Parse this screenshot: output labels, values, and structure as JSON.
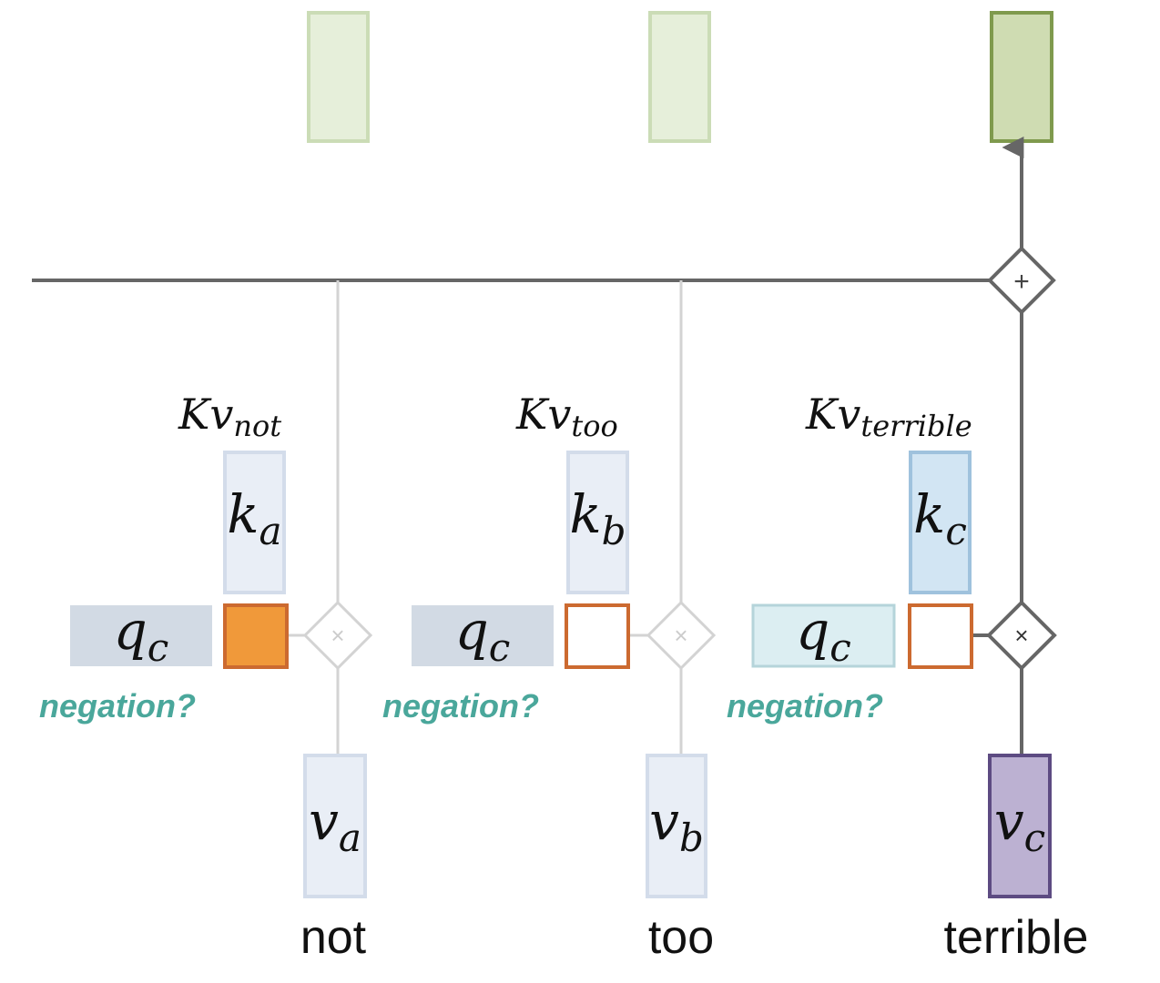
{
  "colors": {
    "output_light_fill": "#e6efda",
    "output_light_stroke": "#cbdcb6",
    "output_active_fill": "#cfdcb2",
    "output_active_stroke": "#7f9a4d",
    "key_light_fill": "#e9eef6",
    "key_light_stroke": "#d3dcea",
    "key_active_fill": "#d2e5f3",
    "key_active_stroke": "#9fc2dd",
    "query_fill": "#d2dae4",
    "query_active_fill": "#dceef2",
    "query_active_stroke": "#b5d4da",
    "score_stroke": "#cc6a30",
    "score_filled": "#f0993a",
    "value_light_fill": "#e9eef6",
    "value_light_stroke": "#d3dcea",
    "value_active_fill": "#bcb1d2",
    "value_active_stroke": "#5d4b82",
    "line_dark": "#666666",
    "line_light": "#d3d3d3",
    "hint_teal": "#4aa79b"
  },
  "residual": {
    "sum_symbol": "+"
  },
  "columns": [
    {
      "token": "not",
      "kv_label": "Kv",
      "kv_sub": "not",
      "key_label": "k",
      "key_sub": "a",
      "query_label": "q",
      "query_sub": "c",
      "value_label": "v",
      "value_sub": "a",
      "hint": "negation?",
      "mult_symbol": "×",
      "score_filled": true,
      "active": false
    },
    {
      "token": "too",
      "kv_label": "Kv",
      "kv_sub": "too",
      "key_label": "k",
      "key_sub": "b",
      "query_label": "q",
      "query_sub": "c",
      "value_label": "v",
      "value_sub": "b",
      "hint": "negation?",
      "mult_symbol": "×",
      "score_filled": false,
      "active": false
    },
    {
      "token": "terrible",
      "kv_label": "Kv",
      "kv_sub": "terrible",
      "key_label": "k",
      "key_sub": "c",
      "query_label": "q",
      "query_sub": "c",
      "value_label": "v",
      "value_sub": "c",
      "hint": "negation?",
      "mult_symbol": "×",
      "score_filled": false,
      "active": true
    }
  ]
}
